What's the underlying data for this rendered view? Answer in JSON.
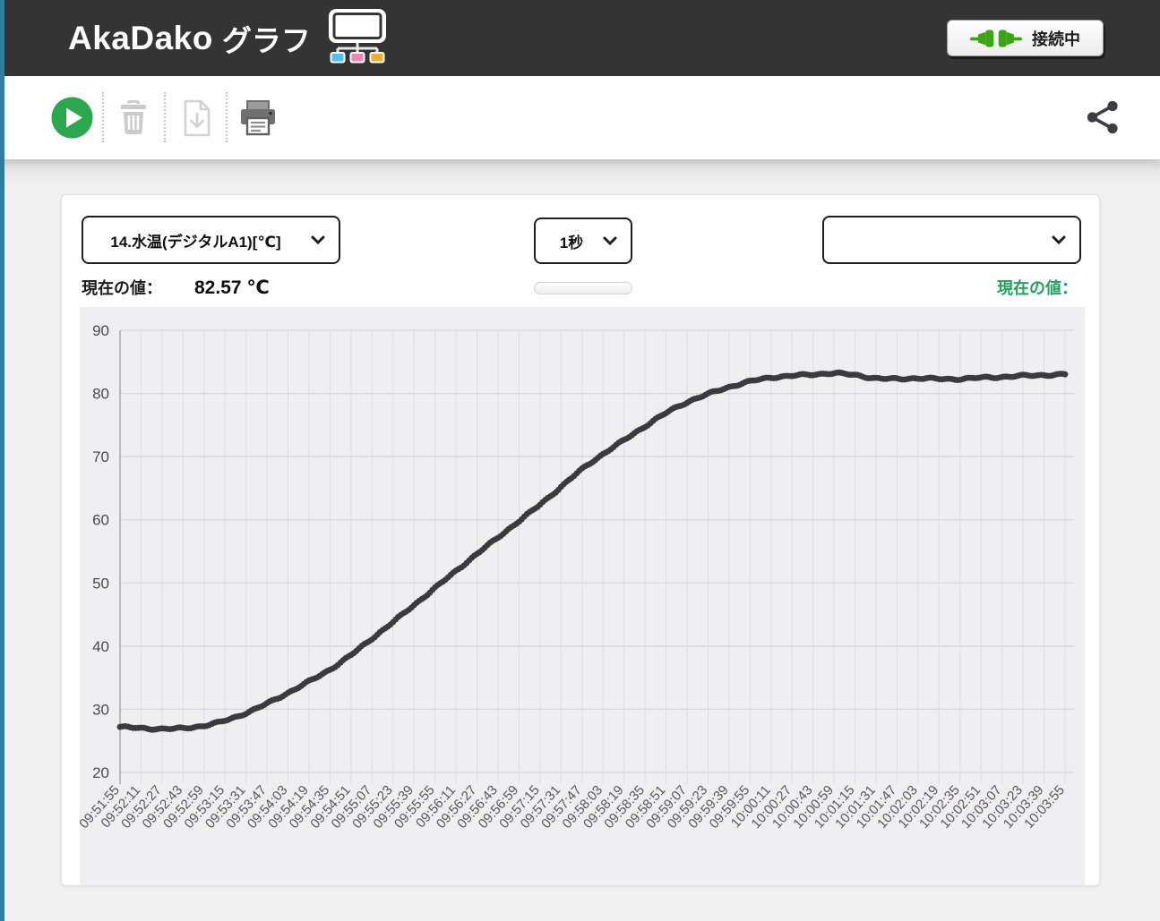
{
  "header": {
    "title_main": "AkaDako",
    "title_sub": "グラフ",
    "connect_button_label": "接続中"
  },
  "panel": {
    "sensor_select_value": "14.水温(デジタルA1)[℃]",
    "interval_select_value": "1秒",
    "compare_select_value": "",
    "current_value_label": "現在の値：",
    "current_value": "82.57 ℃",
    "compare_current_value_label": "現在の値："
  },
  "icons": {
    "logo": "akadako-board-icon",
    "connect": "plug-icon",
    "play": "play-icon",
    "clear": "trash-icon",
    "download": "file-download-icon",
    "print": "printer-icon",
    "share": "share-icon",
    "select_chevron": "chevron-down-icon"
  },
  "colors": {
    "header_bg": "#343434",
    "stripe_teal": "#2e7d9e",
    "play_green": "#2ba84e",
    "plug_green": "#3aa512",
    "label_green": "#21a15f",
    "chart_line": "#3b3a3f",
    "chart_bg": "#efeef0"
  },
  "chart_data": {
    "type": "line",
    "title": "",
    "xlabel": "",
    "ylabel": "",
    "ylim": [
      20,
      90
    ],
    "y_ticks": [
      20,
      30,
      40,
      50,
      60,
      70,
      80,
      90
    ],
    "x_tick_interval_seconds": 16,
    "grid": true,
    "legend": "none",
    "line_color": "#3b3a3f",
    "point_style": "dense-dots",
    "x": [
      "09:51:55",
      "09:52:11",
      "09:52:27",
      "09:52:43",
      "09:52:59",
      "09:53:15",
      "09:53:31",
      "09:53:47",
      "09:54:03",
      "09:54:19",
      "09:54:35",
      "09:54:51",
      "09:55:07",
      "09:55:23",
      "09:55:39",
      "09:55:55",
      "09:56:11",
      "09:56:27",
      "09:56:43",
      "09:56:59",
      "09:57:15",
      "09:57:31",
      "09:57:47",
      "09:58:03",
      "09:58:19",
      "09:58:35",
      "09:58:51",
      "09:59:07",
      "09:59:23",
      "09:59:39",
      "09:59:55",
      "10:00:11",
      "10:00:27",
      "10:00:43",
      "10:00:59",
      "10:01:15",
      "10:01:31",
      "10:01:47",
      "10:02:03",
      "10:02:19",
      "10:02:35",
      "10:02:51",
      "10:03:07",
      "10:03:23",
      "10:03:39",
      "10:03:55"
    ],
    "series": [
      {
        "name": "14.水温(デジタルA1)[℃]",
        "values": [
          27.2,
          27.0,
          26.9,
          27.0,
          27.4,
          28.2,
          29.4,
          30.9,
          32.6,
          34.4,
          36.3,
          38.6,
          41.2,
          43.8,
          46.5,
          49.2,
          51.9,
          54.6,
          57.2,
          59.8,
          62.4,
          65.2,
          68.0,
          70.4,
          72.6,
          74.8,
          76.9,
          78.6,
          79.9,
          81.0,
          81.9,
          82.5,
          82.8,
          83.0,
          83.2,
          82.9,
          82.4,
          82.3,
          82.4,
          82.3,
          82.3,
          82.5,
          82.6,
          82.8,
          82.9,
          83.0
        ]
      }
    ]
  }
}
